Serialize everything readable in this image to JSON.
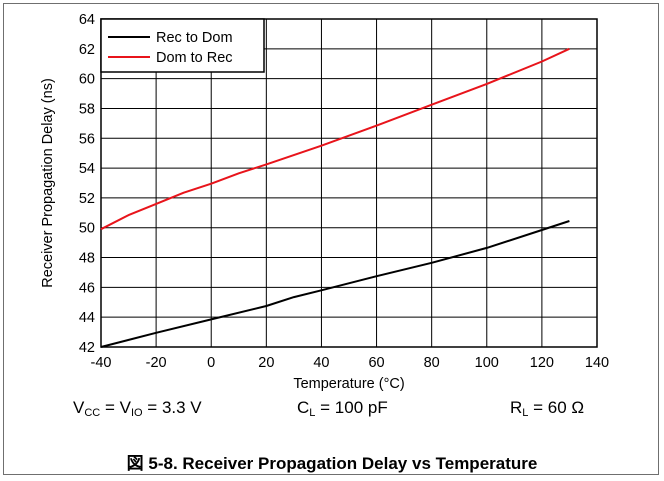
{
  "chart_data": {
    "type": "line",
    "xlabel": "Temperature (°C)",
    "ylabel": "Receiver Propagation Delay (ns)",
    "xlim": [
      -40,
      140
    ],
    "ylim": [
      42,
      64
    ],
    "xticks": [
      -40,
      -20,
      0,
      20,
      40,
      60,
      80,
      100,
      120,
      140
    ],
    "yticks": [
      42,
      44,
      46,
      48,
      50,
      52,
      54,
      56,
      58,
      60,
      62,
      64
    ],
    "grid": true,
    "legend_position": "top-left",
    "series": [
      {
        "name": "Rec to Dom",
        "color": "#000000",
        "x": [
          -40,
          -20,
          0,
          20,
          30,
          40,
          60,
          80,
          100,
          120,
          130
        ],
        "y": [
          42.0,
          42.95,
          43.85,
          44.75,
          45.35,
          45.8,
          46.75,
          47.65,
          48.65,
          49.85,
          50.45
        ]
      },
      {
        "name": "Dom to Rec",
        "color": "#e8141b",
        "x": [
          -40,
          -30,
          -20,
          -10,
          0,
          10,
          20,
          40,
          60,
          80,
          100,
          120,
          130
        ],
        "y": [
          49.9,
          50.85,
          51.6,
          52.35,
          52.95,
          53.65,
          54.25,
          55.5,
          56.85,
          58.25,
          59.65,
          61.15,
          62.0
        ]
      }
    ]
  },
  "conditions": {
    "vcc_prefix": "V",
    "vcc_sub": "CC",
    "vio_mid": " = V",
    "vio_sub": "IO",
    "vio_value": " = 3.3 V",
    "cl_prefix": "C",
    "cl_sub": "L",
    "cl_value": " = 100 pF",
    "rl_prefix": "R",
    "rl_sub": "L",
    "rl_value": " = 60 Ω"
  },
  "caption": "図 5-8. Receiver Propagation Delay vs Temperature"
}
